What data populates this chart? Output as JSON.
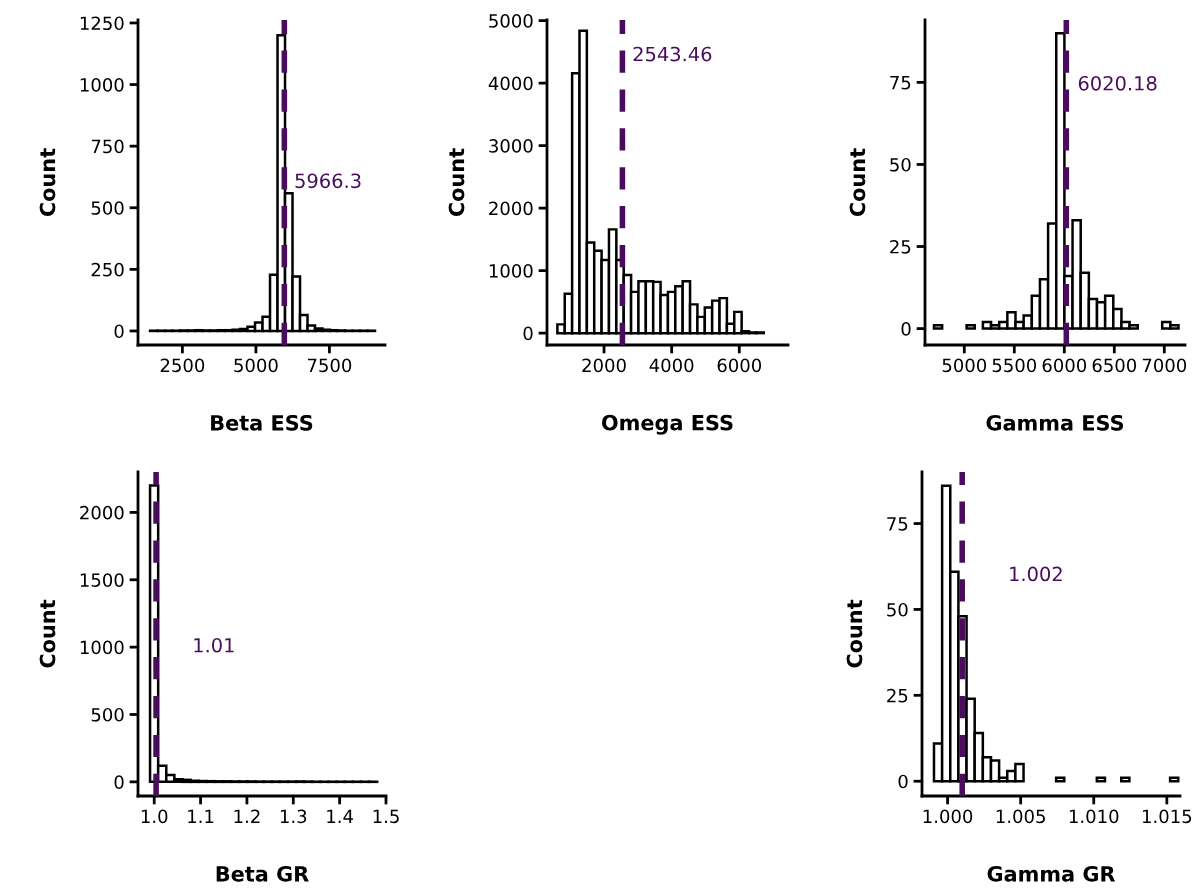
{
  "chart_data": [
    {
      "type": "histogram",
      "xlabel": "Beta ESS",
      "ylabel": "Count",
      "color": "#ffffff",
      "bins": [
        1400,
        1655,
        1910,
        2165,
        2420,
        2675,
        2930,
        3185,
        3440,
        3695,
        3950,
        4205,
        4460,
        4715,
        4970,
        5225,
        5480,
        5735,
        5990,
        6245,
        6500,
        6755,
        7010,
        7265,
        7520,
        7775,
        8030,
        8285,
        8540,
        8795,
        9050
      ],
      "values": [
        1,
        1,
        1,
        1,
        2,
        2,
        3,
        2,
        2,
        3,
        3,
        5,
        8,
        17,
        34,
        58,
        228,
        1200,
        559,
        221,
        65,
        22,
        10,
        5,
        3,
        2,
        1,
        1,
        1,
        1
      ],
      "xlim": [
        990,
        9390
      ],
      "xticks": [
        2500,
        5000,
        7500
      ],
      "ylim": [
        -57,
        1262
      ],
      "yticks": [
        0,
        250,
        500,
        750,
        1000,
        1250
      ],
      "ref_lines": [
        {
          "axis": "x",
          "value": 5966.3,
          "label": "5966.3",
          "color": "#4a0d5e",
          "line_style": "dashed"
        }
      ]
    },
    {
      "type": "histogram",
      "xlabel": "Omega ESS",
      "ylabel": "Count",
      "color": "#ffffff",
      "bins": [
        620,
        838,
        1056,
        1274,
        1492,
        1710,
        1928,
        2146,
        2364,
        2582,
        2800,
        3018,
        3236,
        3454,
        3672,
        3890,
        4108,
        4326,
        4544,
        4762,
        4980,
        5198,
        5416,
        5634,
        5852,
        6070,
        6288,
        6506,
        6724,
        6942,
        7160
      ],
      "values": [
        140,
        630,
        4160,
        4840,
        1450,
        1320,
        1170,
        1660,
        1170,
        930,
        660,
        830,
        830,
        820,
        610,
        660,
        750,
        830,
        460,
        260,
        410,
        520,
        560,
        150,
        340,
        30,
        10,
        10,
        0,
        0
      ],
      "xlim": [
        313,
        7441
      ],
      "xticks": [
        2000,
        4000,
        6000
      ],
      "ylim": [
        -190,
        5010
      ],
      "yticks": [
        0,
        1000,
        2000,
        3000,
        4000,
        5000
      ],
      "ref_lines": [
        {
          "axis": "x",
          "value": 2543.46,
          "label": "2543.46",
          "color": "#4a0d5e",
          "line_style": "dashed"
        }
      ]
    },
    {
      "type": "histogram",
      "xlabel": "Gamma ESS",
      "ylabel": "Count",
      "color": "#ffffff",
      "bins": [
        4697,
        4778.5,
        4860,
        4941.5,
        5023,
        5104.5,
        5186,
        5267.5,
        5349,
        5430.5,
        5512,
        5593.5,
        5675,
        5756.5,
        5838,
        5919.5,
        6001,
        6082.5,
        6164,
        6245.5,
        6327,
        6408.5,
        6490,
        6571.5,
        6653,
        6734.5,
        6816,
        6897.5,
        6979,
        7060.5,
        7142
      ],
      "values": [
        1,
        0,
        0,
        0,
        1,
        0,
        2,
        1,
        2,
        5,
        2,
        4,
        10,
        15,
        32,
        90,
        16,
        33,
        17,
        9,
        8,
        10,
        6,
        2,
        1,
        0,
        0,
        0,
        2,
        1
      ],
      "xlim": [
        4607,
        7207
      ],
      "xticks": [
        5000,
        5500,
        6000,
        6500,
        7000
      ],
      "ylim": [
        -5,
        94
      ],
      "yticks": [
        0,
        25,
        50,
        75
      ],
      "ref_lines": [
        {
          "axis": "x",
          "value": 6020.18,
          "label": "6020.18",
          "color": "#4a0d5e",
          "line_style": "dashed"
        }
      ]
    },
    {
      "type": "histogram",
      "xlabel": "Beta GR",
      "ylabel": "Count",
      "color": "#ffffff",
      "bins": [
        0.991,
        1.0085,
        1.026,
        1.0435,
        1.061,
        1.0785,
        1.096,
        1.1135,
        1.131,
        1.1485,
        1.166,
        1.1835,
        1.201,
        1.2185,
        1.236,
        1.2535,
        1.271,
        1.2885,
        1.306,
        1.3235,
        1.341,
        1.3585,
        1.376,
        1.3935,
        1.411,
        1.4285,
        1.446,
        1.4635,
        1.481
      ],
      "values": [
        2200,
        120,
        50,
        20,
        15,
        8,
        6,
        5,
        4,
        4,
        3,
        3,
        3,
        2,
        2,
        2,
        2,
        2,
        3,
        2,
        1,
        1,
        1,
        1,
        1,
        1,
        1,
        1
      ],
      "xlim": [
        0.965,
        1.5
      ],
      "xticks": [
        {
          "value": 1.0,
          "label": "1.0"
        },
        1.1,
        1.2,
        1.3,
        1.4,
        1.5
      ],
      "ylim": [
        -105,
        2300
      ],
      "yticks": [
        0,
        500,
        1000,
        1500,
        2000
      ],
      "ref_lines": [
        {
          "axis": "x",
          "value": 1.004,
          "color": "#4a0d5e",
          "line_style": "dashed"
        }
      ],
      "annotations": [
        "1.01"
      ]
    },
    {
      "type": "histogram",
      "xlabel": "Gamma GR",
      "ylabel": "Count",
      "color": "#ffffff",
      "bins": [
        0.99907,
        0.999627,
        1.000184,
        1.000741,
        1.001298,
        1.001855,
        1.002412,
        1.002969,
        1.003526,
        1.004083,
        1.00464,
        1.005197,
        1.005754,
        1.006311,
        1.006868,
        1.007425,
        1.007982,
        1.008539,
        1.009096,
        1.009653,
        1.01021,
        1.010767,
        1.011324,
        1.011881,
        1.012438,
        1.012995,
        1.013552,
        1.014109,
        1.014666,
        1.015223,
        1.01578
      ],
      "values": [
        11,
        86,
        61,
        48,
        24,
        14,
        7,
        6,
        1,
        3,
        5,
        0,
        0,
        0,
        0,
        1,
        0,
        0,
        0,
        0,
        1,
        0,
        0,
        1,
        0,
        0,
        0,
        0,
        0,
        1
      ],
      "xlim": [
        0.99825,
        1.0159
      ],
      "xticks": [
        {
          "value": 1.0,
          "label": "1.000"
        },
        {
          "value": 1.005,
          "label": "1.005"
        },
        {
          "value": 1.01,
          "label": "1.010"
        },
        {
          "value": 1.015,
          "label": "1.015"
        }
      ],
      "ylim": [
        -4.3,
        90
      ],
      "yticks": [
        0,
        25,
        50,
        75
      ],
      "ref_lines": [
        {
          "axis": "x",
          "value": 1.001,
          "color": "#4a0d5e",
          "line_style": "dashed"
        }
      ],
      "annotations": [
        "1.002"
      ]
    }
  ]
}
